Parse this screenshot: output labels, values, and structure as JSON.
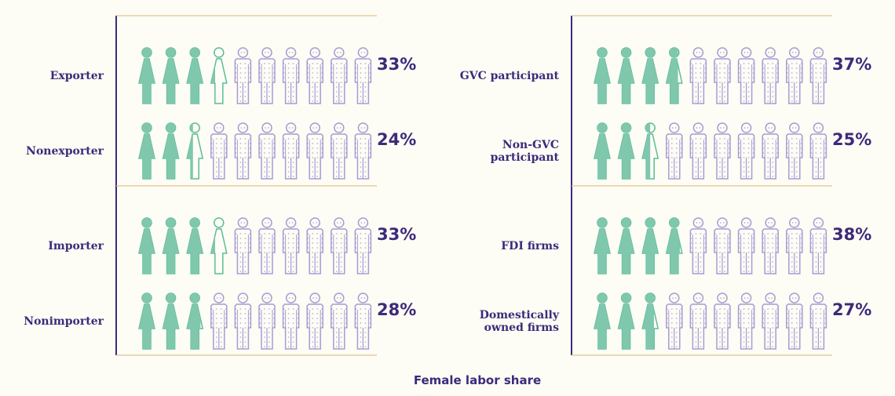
{
  "chart_data": {
    "type": "pictogram",
    "xlabel": "Female labor share",
    "icons_per_row": 10,
    "colors": {
      "female": "#80c8ad",
      "female_stroke": "#5cbc98",
      "male": "#a99bd3",
      "text": "#3d2a7a",
      "rule": "#e6c38c",
      "axis": "#3d2a7a"
    },
    "panels": [
      {
        "groups": [
          {
            "rows": [
              {
                "label": [
                  "Exporter"
                ],
                "value": 33,
                "display": "33%"
              },
              {
                "label": [
                  "Nonexporter"
                ],
                "value": 24,
                "display": "24%"
              }
            ]
          },
          {
            "rows": [
              {
                "label": [
                  "Importer"
                ],
                "value": 33,
                "display": "33%"
              },
              {
                "label": [
                  "Nonimporter"
                ],
                "value": 28,
                "display": "28%"
              }
            ]
          }
        ]
      },
      {
        "groups": [
          {
            "rows": [
              {
                "label": [
                  "GVC participant"
                ],
                "value": 37,
                "display": "37%"
              },
              {
                "label": [
                  "Non-GVC",
                  "participant"
                ],
                "value": 25,
                "display": "25%"
              }
            ]
          },
          {
            "rows": [
              {
                "label": [
                  "FDI firms"
                ],
                "value": 38,
                "display": "38%"
              },
              {
                "label": [
                  "Domestically",
                  "owned firms"
                ],
                "value": 27,
                "display": "27%"
              }
            ]
          }
        ]
      }
    ]
  }
}
